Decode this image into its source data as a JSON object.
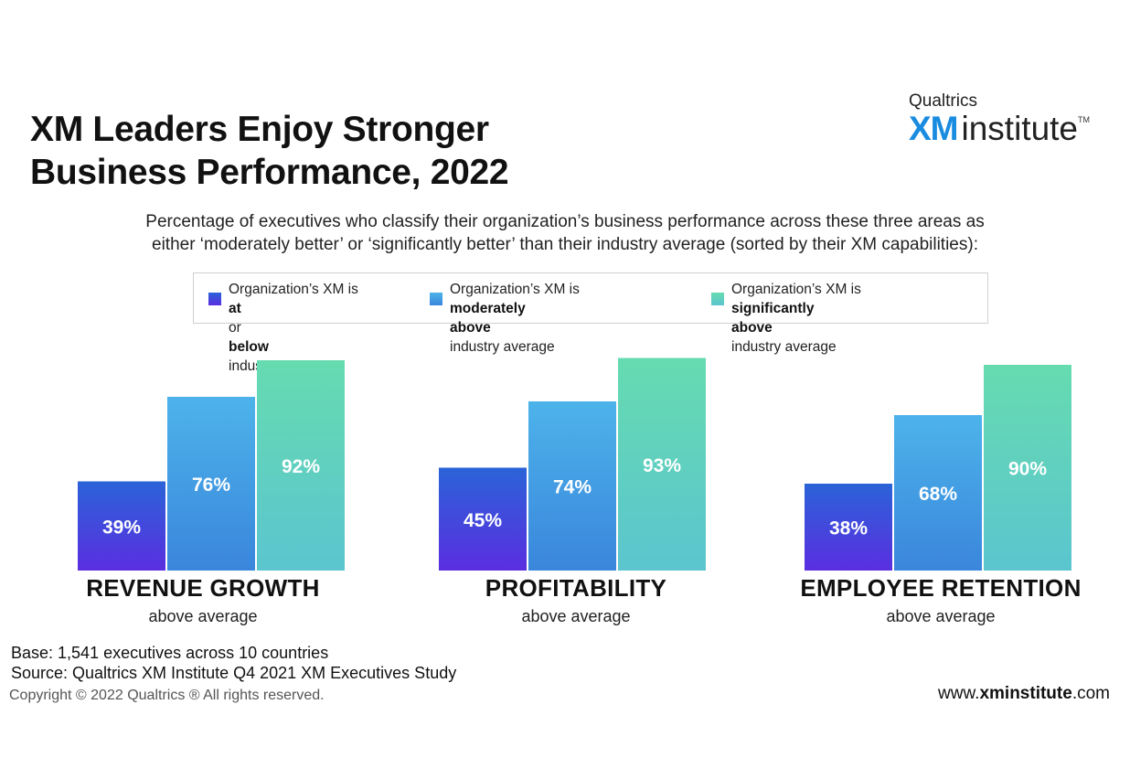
{
  "title_lines": [
    "XM Leaders Enjoy Stronger",
    "Business Performance, 2022"
  ],
  "brand": {
    "top": "Qualtrics",
    "xm": "XM",
    "institute": "institute",
    "tm": "TM"
  },
  "subtitle_lines": [
    "Percentage of executives who classify their organization’s business performance across these three areas as",
    "either ‘moderately better’ or ‘significantly better’ than their industry average (sorted by their XM capabilities):"
  ],
  "legend": [
    {
      "line1_pre": "Organization’s XM is ",
      "line1_bold": "at",
      "line1_post": " or",
      "line2_bold": "below",
      "line2_post": " industry average",
      "color_top": "#2b63d8",
      "color_bottom": "#5a2ee0"
    },
    {
      "line1_pre": "Organization’s XM is ",
      "line1_bold": "moderately",
      "line1_post": "",
      "line2_bold": "above",
      "line2_post": " industry average",
      "color_top": "#4db3ea",
      "color_bottom": "#3a86dc"
    },
    {
      "line1_pre": "Organization’s XM is ",
      "line1_bold": "significantly",
      "line1_post": "",
      "line2_bold": "above",
      "line2_post": " industry average",
      "color_top": "#66dbb0",
      "color_bottom": "#5bc5cf"
    }
  ],
  "chart_data": {
    "type": "bar",
    "categories": [
      "REVENUE GROWTH",
      "PROFITABILITY",
      "EMPLOYEE RETENTION"
    ],
    "category_sublabel": "above average",
    "series": [
      {
        "values": [
          39,
          45,
          38
        ]
      },
      {
        "values": [
          76,
          74,
          68
        ]
      },
      {
        "values": [
          92,
          93,
          90
        ]
      }
    ],
    "value_suffix": "%",
    "ylim": [
      0,
      100
    ]
  },
  "base_lines": [
    "Base: 1,541 executives across 10 countries",
    "Source: Qualtrics XM Institute Q4 2021 XM Executives Study"
  ],
  "copyright": "Copyright © 2022 Qualtrics ® All rights reserved.",
  "website": {
    "pre": "www.",
    "bold": "xminstitute",
    "post": ".com"
  }
}
